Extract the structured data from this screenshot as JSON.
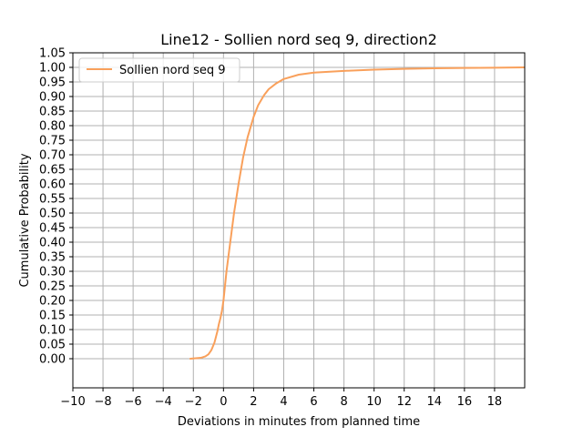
{
  "chart_data": {
    "type": "line",
    "title": "Line12 - Sollien nord seq 9, direction2",
    "xlabel": "Deviations in minutes from planned time",
    "ylabel": "Cumulative Probability",
    "xlim": [
      -10,
      20
    ],
    "ylim": [
      -0.1,
      1.05
    ],
    "xticks": [
      -10,
      -8,
      -6,
      -4,
      -2,
      0,
      2,
      4,
      6,
      8,
      10,
      12,
      14,
      16,
      18
    ],
    "yticks": [
      0.0,
      0.05,
      0.1,
      0.15,
      0.2,
      0.25,
      0.3,
      0.35,
      0.4,
      0.45,
      0.5,
      0.55,
      0.6,
      0.65,
      0.7,
      0.75,
      0.8,
      0.85,
      0.9,
      0.95,
      1.0,
      1.05
    ],
    "grid": true,
    "legend_position": "upper-left",
    "series": [
      {
        "name": "Sollien nord seq 9",
        "color": "#f9a05b",
        "x": [
          -2.2,
          -1.5,
          -1.2,
          -1.0,
          -0.8,
          -0.6,
          -0.5,
          -0.4,
          -0.3,
          -0.2,
          -0.1,
          0.0,
          0.1,
          0.2,
          0.3,
          0.5,
          0.7,
          1.0,
          1.3,
          1.6,
          2.0,
          2.3,
          2.7,
          3.0,
          3.5,
          4.0,
          5.0,
          6.0,
          8.0,
          10.0,
          12.0,
          14.0,
          16.0,
          18.0,
          20.0
        ],
        "y": [
          0.0,
          0.003,
          0.008,
          0.015,
          0.03,
          0.055,
          0.075,
          0.095,
          0.12,
          0.14,
          0.165,
          0.2,
          0.25,
          0.3,
          0.34,
          0.42,
          0.5,
          0.6,
          0.69,
          0.76,
          0.83,
          0.87,
          0.905,
          0.925,
          0.945,
          0.96,
          0.975,
          0.982,
          0.988,
          0.992,
          0.995,
          0.997,
          0.998,
          0.999,
          1.0
        ]
      }
    ]
  }
}
